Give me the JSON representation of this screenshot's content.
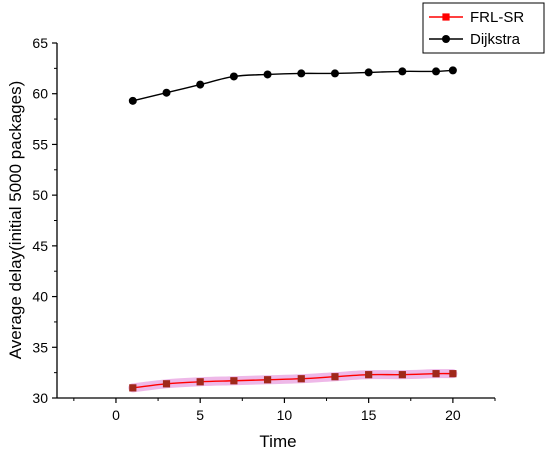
{
  "chart_data": {
    "type": "line",
    "xlabel": "Time",
    "ylabel": "Average delay(initial 5000 packages)",
    "xlim": [
      -3.5,
      22.5
    ],
    "ylim": [
      30,
      65
    ],
    "xticks": [
      0,
      5,
      10,
      15,
      20
    ],
    "yticks": [
      30,
      35,
      40,
      45,
      50,
      55,
      60,
      65
    ],
    "grid": false,
    "legend_position": "top-right",
    "x": [
      1,
      3,
      5,
      7,
      9,
      11,
      13,
      15,
      17,
      19,
      20
    ],
    "series": [
      {
        "name": "FRL-SR",
        "color": "#ff0000",
        "marker_color": "#a0281a",
        "band_color": "#e8a0e0",
        "marker": "square",
        "values": [
          31.0,
          31.4,
          31.6,
          31.7,
          31.8,
          31.9,
          32.1,
          32.3,
          32.3,
          32.4,
          32.4
        ]
      },
      {
        "name": "Dijkstra",
        "color": "#000000",
        "marker_color": "#000000",
        "marker": "circle",
        "values": [
          59.3,
          60.1,
          60.9,
          61.7,
          61.9,
          62.0,
          62.0,
          62.1,
          62.2,
          62.2,
          62.3
        ]
      }
    ]
  }
}
